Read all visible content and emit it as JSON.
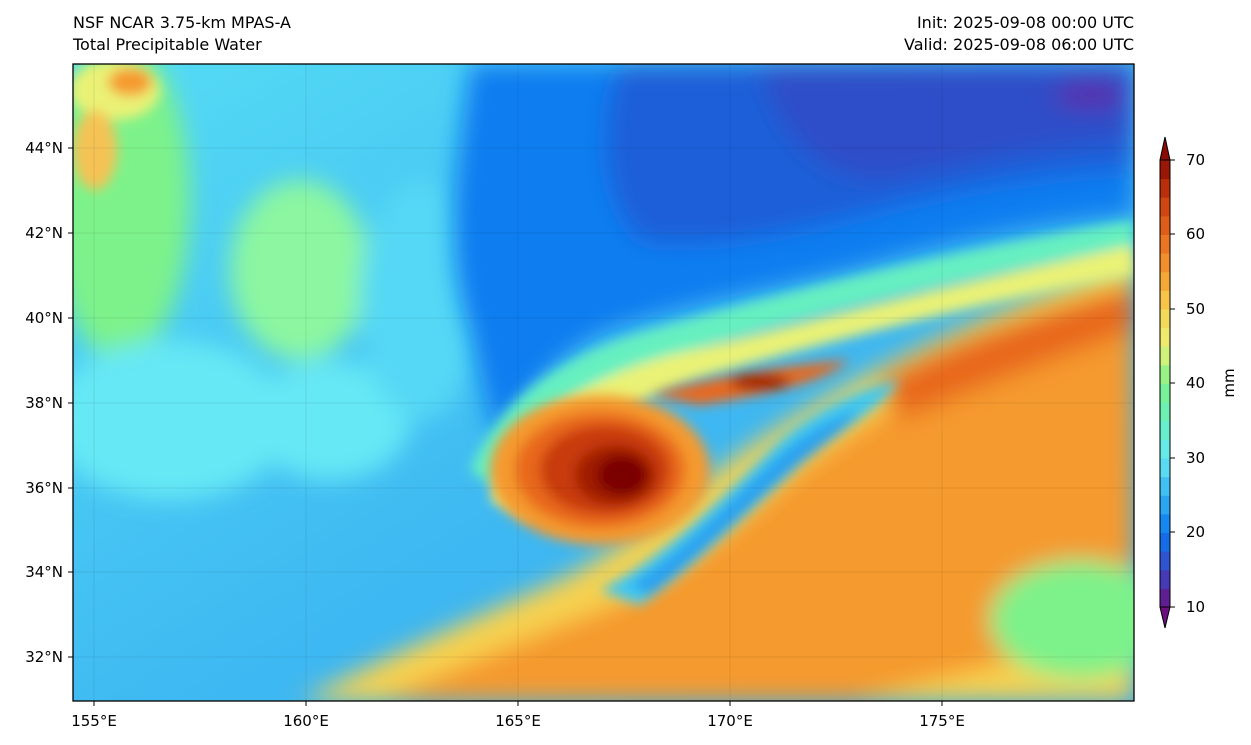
{
  "header": {
    "model": "NSF NCAR 3.75-km MPAS-A",
    "field": "Total Precipitable Water",
    "init": "Init: 2025-09-08 00:00 UTC",
    "valid": "Valid: 2025-09-08 06:00 UTC"
  },
  "map": {
    "lat_labels": [
      "44°N",
      "42°N",
      "40°N",
      "38°N",
      "36°N",
      "34°N",
      "32°N"
    ],
    "lon_labels": [
      "155°E",
      "160°E",
      "165°E",
      "170°E",
      "175°E"
    ],
    "lat_values": [
      44,
      42,
      40,
      38,
      36,
      34,
      32
    ],
    "lon_values": [
      155,
      160,
      165,
      170,
      175
    ],
    "lon_range": [
      154.5,
      179.6
    ],
    "lat_range": [
      31,
      46
    ],
    "gridlines": true
  },
  "colorbar": {
    "units": "mm",
    "tick_labels": [
      "70",
      "60",
      "50",
      "40",
      "30",
      "20",
      "10"
    ],
    "tick_values": [
      70,
      60,
      50,
      40,
      30,
      20,
      10
    ],
    "range": [
      10,
      70
    ],
    "extend": "both",
    "colormap_stops": [
      "#6b1080",
      "#3a48c8",
      "#0a78f0",
      "#33b4f2",
      "#66e8f5",
      "#66f0c0",
      "#7df28a",
      "#eaf276",
      "#f7d250",
      "#f59a2f",
      "#e8681d",
      "#c83a0d",
      "#8b0a04"
    ]
  }
}
